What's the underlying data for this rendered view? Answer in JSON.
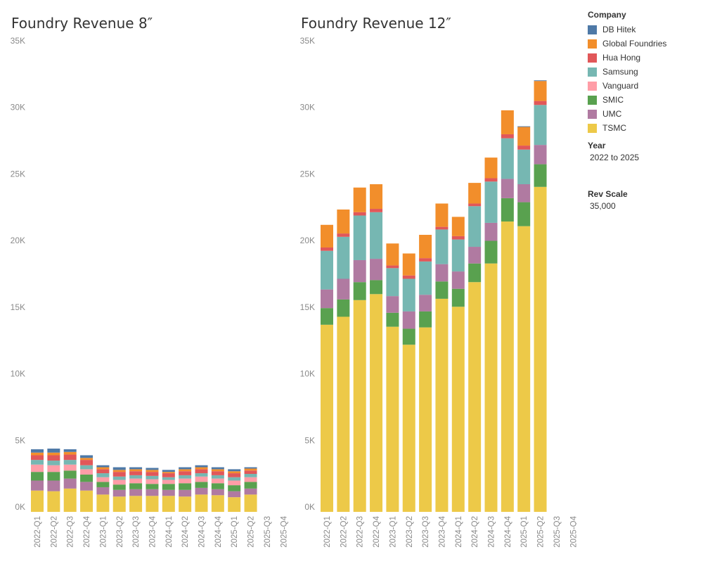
{
  "legend": {
    "title": "Company",
    "items": [
      {
        "name": "DB Hitek",
        "color": "#4e79a7"
      },
      {
        "name": "Global Foundries",
        "color": "#f28e2b"
      },
      {
        "name": "Hua Hong",
        "color": "#e15759"
      },
      {
        "name": "Samsung",
        "color": "#76b7b2"
      },
      {
        "name": "Vanguard",
        "color": "#ff9da7"
      },
      {
        "name": "SMIC",
        "color": "#59a14f"
      },
      {
        "name": "UMC",
        "color": "#b07aa1"
      },
      {
        "name": "TSMC",
        "color": "#edc948"
      }
    ]
  },
  "filters": {
    "year": {
      "title": "Year",
      "value": "2022 to 2025"
    },
    "rev_scale": {
      "title": "Rev Scale",
      "value": "35,000"
    }
  },
  "chart_data": [
    {
      "type": "bar",
      "stacked": true,
      "title": "Foundry Revenue 8″",
      "categories": [
        "2022-Q1",
        "2022-Q2",
        "2022-Q3",
        "2022-Q4",
        "2023-Q1",
        "2023-Q2",
        "2023-Q3",
        "2023-Q4",
        "2024-Q1",
        "2024-Q2",
        "2024-Q3",
        "2024-Q4",
        "2025-Q1",
        "2025-Q2",
        "2025-Q3",
        "2025-Q4"
      ],
      "ylim": [
        0,
        35000
      ],
      "yticks": [
        0,
        5000,
        10000,
        15000,
        20000,
        25000,
        30000,
        35000
      ],
      "ytick_labels": [
        "0K",
        "5K",
        "10K",
        "15K",
        "20K",
        "25K",
        "30K",
        "35K"
      ],
      "series": [
        {
          "name": "TSMC",
          "values": [
            1600,
            1550,
            1750,
            1600,
            1300,
            1150,
            1200,
            1200,
            1200,
            1150,
            1300,
            1250,
            1100,
            1300,
            null,
            null
          ]
        },
        {
          "name": "UMC",
          "values": [
            750,
            800,
            750,
            650,
            550,
            500,
            500,
            500,
            450,
            500,
            500,
            450,
            450,
            450,
            null,
            null
          ]
        },
        {
          "name": "SMIC",
          "values": [
            650,
            650,
            600,
            550,
            400,
            400,
            450,
            400,
            450,
            500,
            450,
            450,
            450,
            500,
            null,
            null
          ]
        },
        {
          "name": "Vanguard",
          "values": [
            550,
            500,
            450,
            400,
            350,
            350,
            350,
            350,
            300,
            350,
            400,
            350,
            350,
            350,
            null,
            null
          ]
        },
        {
          "name": "Samsung",
          "values": [
            350,
            350,
            350,
            300,
            300,
            250,
            250,
            250,
            200,
            250,
            250,
            250,
            250,
            250,
            null,
            null
          ]
        },
        {
          "name": "Hua Hong",
          "values": [
            350,
            400,
            400,
            400,
            300,
            350,
            300,
            300,
            300,
            300,
            300,
            300,
            300,
            250,
            null,
            null
          ]
        },
        {
          "name": "Global Foundries",
          "values": [
            200,
            200,
            200,
            150,
            150,
            150,
            150,
            150,
            100,
            150,
            150,
            150,
            150,
            150,
            null,
            null
          ]
        },
        {
          "name": "DB Hitek",
          "values": [
            250,
            300,
            200,
            200,
            150,
            200,
            150,
            150,
            150,
            150,
            150,
            150,
            150,
            100,
            null,
            null
          ]
        }
      ]
    },
    {
      "type": "bar",
      "stacked": true,
      "title": "Foundry Revenue 12″",
      "categories": [
        "2022-Q1",
        "2022-Q2",
        "2022-Q3",
        "2022-Q4",
        "2023-Q1",
        "2023-Q2",
        "2023-Q3",
        "2023-Q4",
        "2024-Q1",
        "2024-Q2",
        "2024-Q3",
        "2024-Q4",
        "2025-Q1",
        "2025-Q2",
        "2025-Q3",
        "2025-Q4"
      ],
      "ylim": [
        0,
        35000
      ],
      "yticks": [
        0,
        5000,
        10000,
        15000,
        20000,
        25000,
        30000,
        35000
      ],
      "ytick_labels": [
        "0K",
        "5K",
        "10K",
        "15K",
        "20K",
        "25K",
        "30K",
        "35K"
      ],
      "series": [
        {
          "name": "TSMC",
          "values": [
            14050,
            14650,
            15900,
            16350,
            13900,
            12550,
            13850,
            16000,
            15400,
            17250,
            18650,
            21800,
            21450,
            24400,
            null,
            null
          ]
        },
        {
          "name": "SMIC",
          "values": [
            1250,
            1300,
            1350,
            1050,
            1050,
            1200,
            1200,
            1300,
            1350,
            1400,
            1700,
            1750,
            1800,
            1700,
            null,
            null
          ]
        },
        {
          "name": "UMC",
          "values": [
            1400,
            1550,
            1650,
            1600,
            1250,
            1300,
            1250,
            1300,
            1300,
            1250,
            1350,
            1450,
            1350,
            1450,
            null,
            null
          ]
        },
        {
          "name": "Samsung",
          "values": [
            2900,
            3150,
            3350,
            3500,
            2100,
            2450,
            2500,
            2600,
            2400,
            3050,
            3100,
            3050,
            2600,
            3000,
            null,
            null
          ]
        },
        {
          "name": "Hua Hong",
          "values": [
            250,
            250,
            250,
            250,
            200,
            250,
            250,
            200,
            250,
            200,
            250,
            300,
            300,
            300,
            null,
            null
          ]
        },
        {
          "name": "Global Foundries",
          "values": [
            1700,
            1800,
            1850,
            1850,
            1650,
            1650,
            1750,
            1750,
            1450,
            1550,
            1550,
            1800,
            1400,
            1500,
            null,
            null
          ]
        },
        {
          "name": "DB Hitek",
          "values": [
            0,
            0,
            0,
            0,
            0,
            0,
            0,
            0,
            0,
            0,
            0,
            0,
            50,
            50,
            null,
            null
          ]
        }
      ]
    }
  ]
}
